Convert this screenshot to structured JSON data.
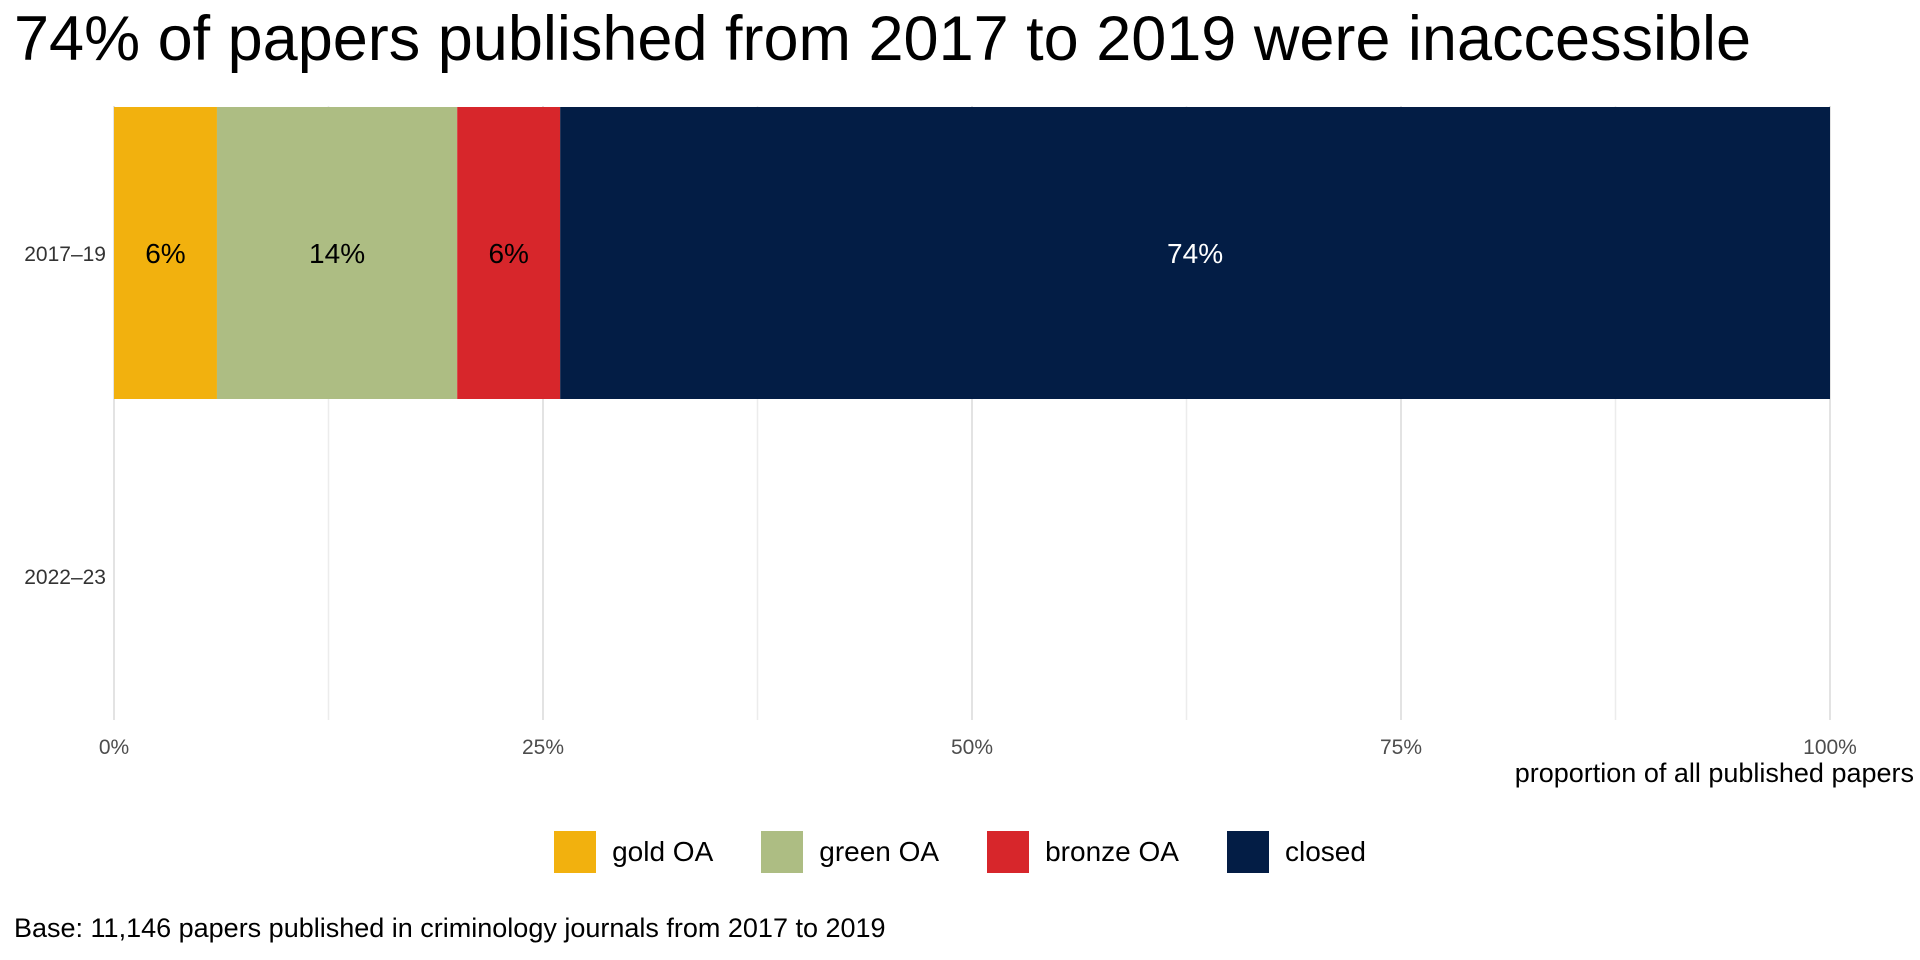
{
  "title": "74% of papers published from 2017 to 2019 were inaccessible",
  "caption": "Base: 11,146 papers published in criminology journals from 2017 to 2019",
  "chart_data": {
    "type": "bar",
    "orientation": "horizontal",
    "stacked": true,
    "categories": [
      "2017–19",
      "2022–23"
    ],
    "series": [
      {
        "name": "gold OA",
        "color": "#F2B10E",
        "values": [
          6,
          null
        ],
        "label_color": "#000000"
      },
      {
        "name": "green OA",
        "color": "#ADBD83",
        "values": [
          14,
          null
        ],
        "label_color": "#000000"
      },
      {
        "name": "bronze OA",
        "color": "#D7262B",
        "values": [
          6,
          null
        ],
        "label_color": "#000000"
      },
      {
        "name": "closed",
        "color": "#031D45",
        "values": [
          74,
          null
        ],
        "label_color": "#ffffff"
      }
    ],
    "data_labels": [
      [
        "6%",
        "14%",
        "6%",
        "74%"
      ],
      []
    ],
    "x_ticks": [
      0,
      25,
      50,
      75,
      100
    ],
    "x_tick_labels": [
      "0%",
      "25%",
      "50%",
      "75%",
      "100%"
    ],
    "xlabel": "proportion of all published papers",
    "ylabel": "",
    "xlim": [
      0,
      100
    ],
    "grid": "vertical major and minor",
    "legend_position": "bottom"
  }
}
